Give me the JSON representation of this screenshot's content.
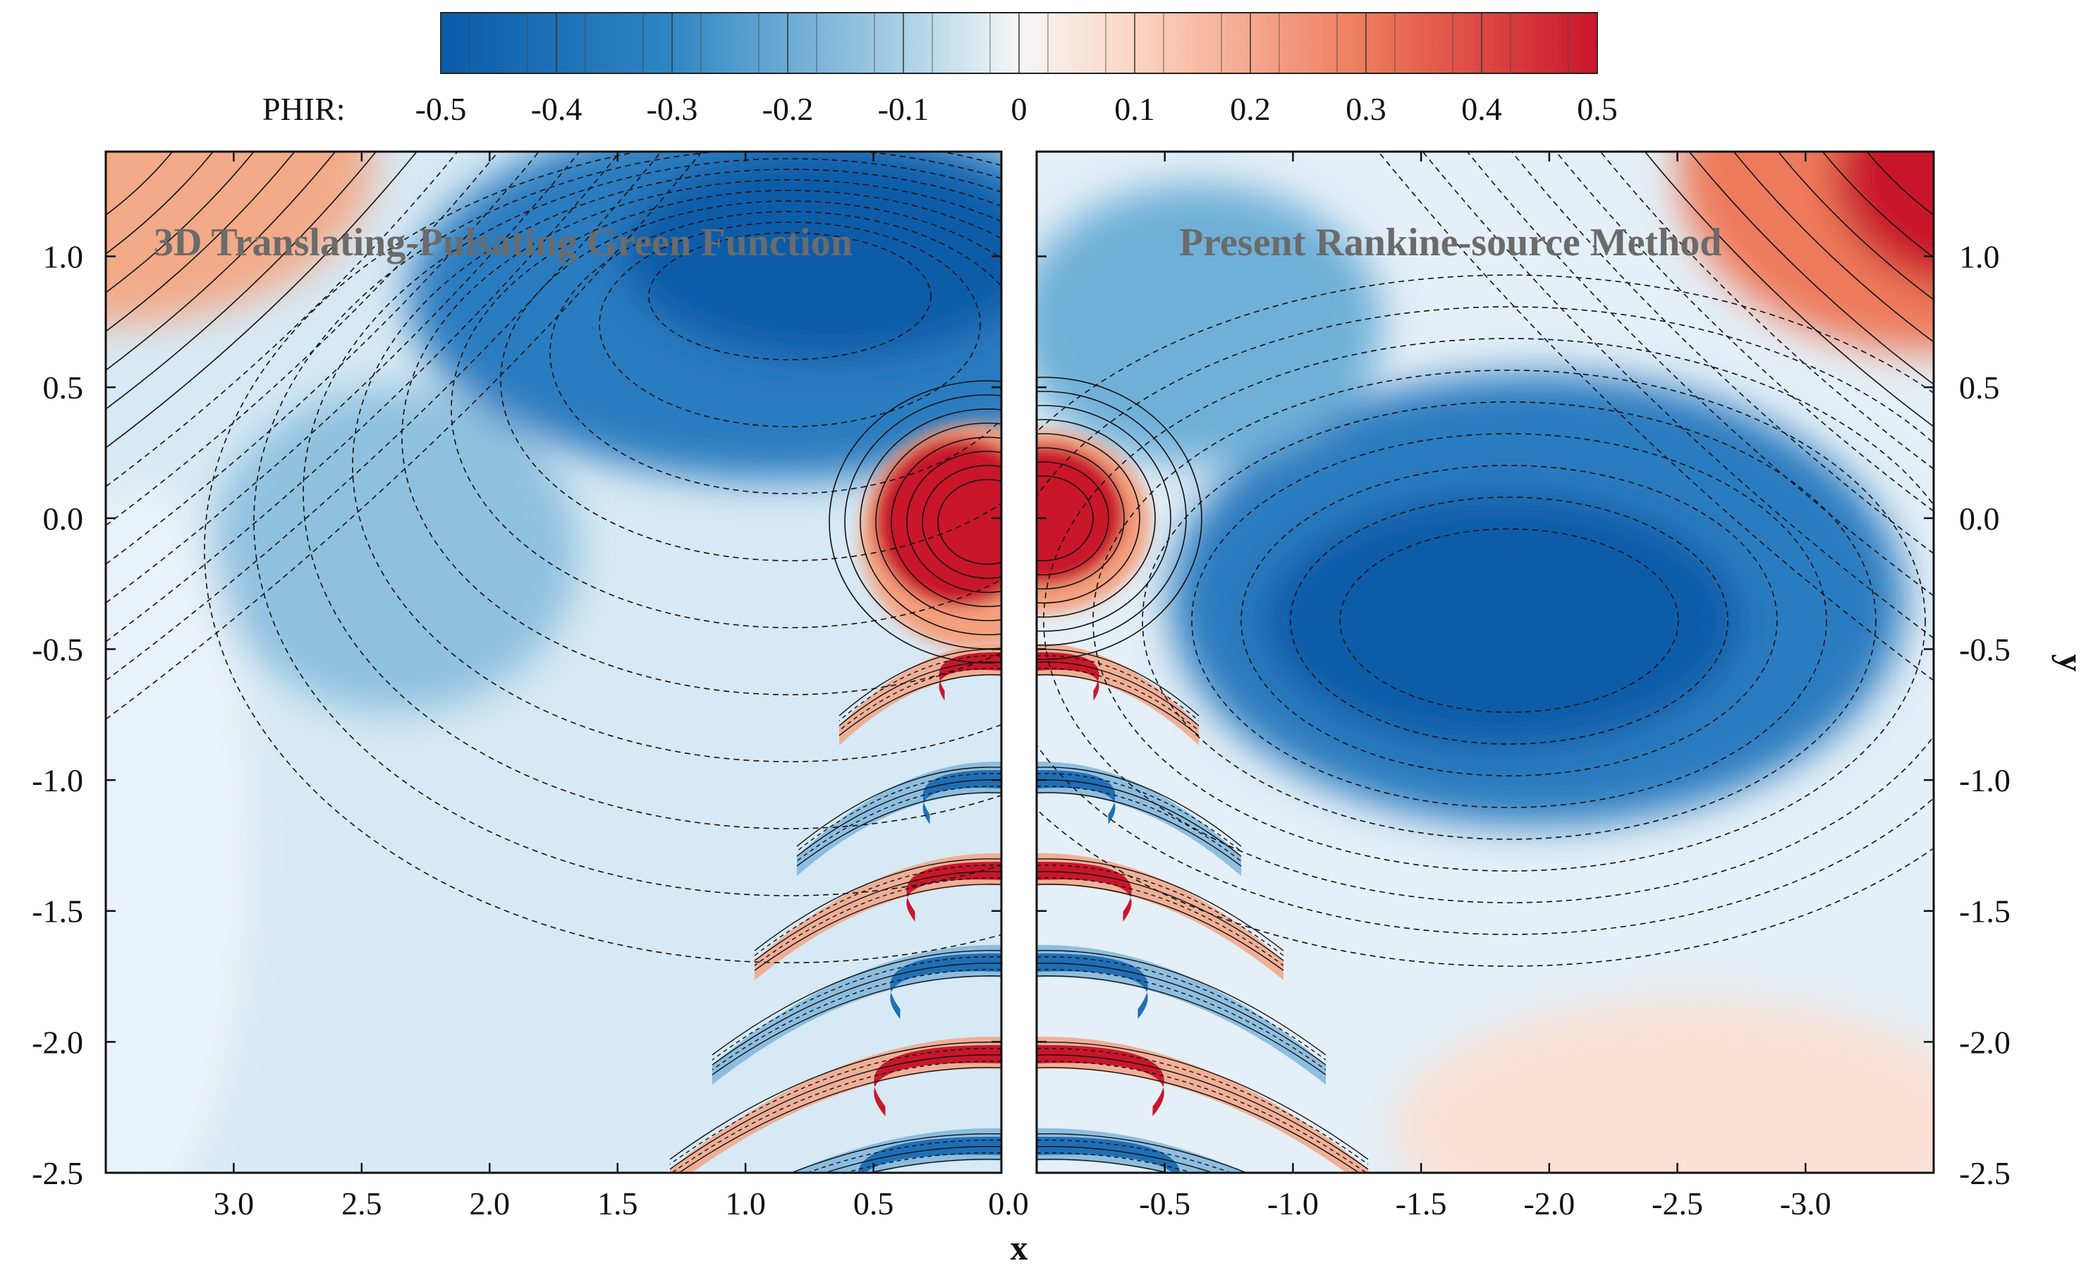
{
  "chart_data": {
    "type": "heatmap",
    "variable": "PHIR",
    "colorbar": {
      "label": "PHIR:",
      "min": -0.5,
      "max": 0.5,
      "ticks": [
        -0.5,
        -0.4,
        -0.3,
        -0.2,
        -0.1,
        0,
        0.1,
        0.2,
        0.3,
        0.4,
        0.5
      ],
      "tick_labels": [
        "-0.5",
        "-0.4",
        "-0.3",
        "-0.2",
        "-0.1",
        "0",
        "0.1",
        "0.2",
        "0.3",
        "0.4",
        "0.5"
      ],
      "colors": [
        "#08519c",
        "#2171b5",
        "#4292c6",
        "#9ecae1",
        "#deebf7",
        "#f7f7f7",
        "#fddbc7",
        "#f4a582",
        "#ef6548",
        "#d6604d",
        "#c8102e"
      ]
    },
    "xlabel": "x",
    "ylabel": "y",
    "left_panel": {
      "title": "3D Translating-Pulsating Green Function",
      "xlim": [
        3.5,
        0
      ],
      "x_ticks": [
        3.0,
        2.5,
        2.0,
        1.5,
        1.0,
        0.5,
        0.0
      ],
      "x_tick_labels": [
        "3.0",
        "2.5",
        "2.0",
        "1.5",
        "1.0",
        "0.5",
        "0.0"
      ]
    },
    "right_panel": {
      "title": "Present Rankine-source Method",
      "xlim": [
        0,
        -3.5
      ],
      "x_ticks": [
        0.0,
        -0.5,
        -1.0,
        -1.5,
        -2.0,
        -2.5,
        -3.0
      ],
      "x_tick_labels": [
        "0.0",
        "-0.5",
        "-1.0",
        "-1.5",
        "-2.0",
        "-2.5",
        "-3.0"
      ]
    },
    "ylim": [
      -2.5,
      1.4
    ],
    "y_ticks": [
      1.0,
      0.5,
      0.0,
      -0.5,
      -1.0,
      -1.5,
      -2.0,
      -2.5
    ],
    "y_tick_labels": [
      "1.0",
      "0.5",
      "0.0",
      "-0.5",
      "-1.0",
      "-1.5",
      "-2.0",
      "-2.5"
    ],
    "wave_bands": {
      "y_centers": [
        -0.55,
        -1.0,
        -1.35,
        -1.7,
        -2.05,
        -2.4
      ],
      "signs": [
        1,
        -1,
        1,
        -1,
        1,
        -1
      ]
    }
  }
}
